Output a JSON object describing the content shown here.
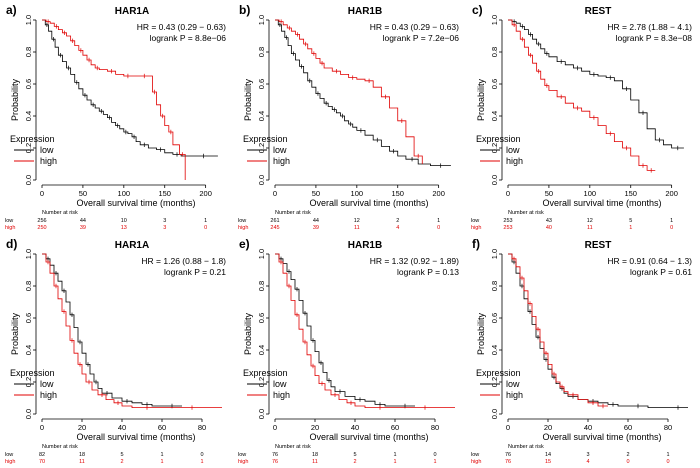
{
  "figure": {
    "colors": {
      "low": "#000000",
      "high": "#e00000",
      "axis": "#000000"
    },
    "legend_title": "Expression",
    "legend_labels": [
      "low",
      "high"
    ],
    "number_at_risk_label": "Number at risk"
  },
  "chart_data": [
    {
      "panel_label": "a)",
      "type": "line",
      "title": "HAR1A",
      "xlabel": "Overall survival time (months)",
      "ylabel": "Probability",
      "xlim": [
        0,
        220
      ],
      "ylim": [
        0,
        1
      ],
      "xticks": [
        0,
        50,
        100,
        150,
        200
      ],
      "yticks": [
        0,
        0.2,
        0.4,
        0.6,
        0.8,
        1.0
      ],
      "hr_text": "HR = 0.43 (0.29 − 0.63)",
      "p_text": "logrank P = 8.8e−06",
      "risk_times": [
        0,
        50,
        100,
        150,
        200
      ],
      "series": [
        {
          "name": "low",
          "risk": [
            "256",
            "44",
            "10",
            "3",
            "1"
          ],
          "x": [
            0,
            4,
            8,
            12,
            16,
            20,
            25,
            30,
            35,
            40,
            45,
            50,
            55,
            60,
            65,
            70,
            75,
            80,
            85,
            90,
            95,
            100,
            105,
            110,
            115,
            120,
            130,
            140,
            150,
            160,
            170,
            180,
            215
          ],
          "y": [
            1,
            0.97,
            0.93,
            0.88,
            0.83,
            0.78,
            0.74,
            0.7,
            0.66,
            0.61,
            0.57,
            0.53,
            0.5,
            0.47,
            0.45,
            0.43,
            0.41,
            0.39,
            0.36,
            0.34,
            0.32,
            0.3,
            0.29,
            0.27,
            0.24,
            0.22,
            0.2,
            0.19,
            0.17,
            0.16,
            0.15,
            0.15,
            0.15
          ]
        },
        {
          "name": "high",
          "risk": [
            "250",
            "39",
            "13",
            "3",
            "0"
          ],
          "x": [
            0,
            5,
            10,
            15,
            20,
            25,
            30,
            35,
            40,
            45,
            50,
            55,
            60,
            65,
            70,
            80,
            90,
            100,
            110,
            120,
            130,
            135,
            140,
            145,
            150,
            155,
            160,
            168,
            175
          ],
          "y": [
            1,
            0.99,
            0.98,
            0.96,
            0.94,
            0.92,
            0.9,
            0.87,
            0.84,
            0.81,
            0.78,
            0.75,
            0.72,
            0.7,
            0.69,
            0.68,
            0.66,
            0.65,
            0.65,
            0.65,
            0.65,
            0.55,
            0.47,
            0.4,
            0.34,
            0.3,
            0.22,
            0.16,
            0
          ]
        }
      ]
    },
    {
      "panel_label": "b)",
      "type": "line",
      "title": "HAR1B",
      "xlabel": "Overall survival time (months)",
      "ylabel": "Probability",
      "xlim": [
        0,
        220
      ],
      "ylim": [
        0,
        1
      ],
      "xticks": [
        0,
        50,
        100,
        150,
        200
      ],
      "yticks": [
        0,
        0.2,
        0.4,
        0.6,
        0.8,
        1.0
      ],
      "hr_text": "HR = 0.43 (0.29 − 0.63)",
      "p_text": "logrank P = 7.2e−06",
      "risk_times": [
        0,
        50,
        100,
        150,
        200
      ],
      "series": [
        {
          "name": "low",
          "risk": [
            "261",
            "44",
            "12",
            "2",
            "1"
          ],
          "x": [
            0,
            4,
            8,
            12,
            16,
            20,
            25,
            30,
            35,
            40,
            45,
            50,
            55,
            60,
            65,
            70,
            75,
            80,
            85,
            90,
            95,
            100,
            110,
            120,
            130,
            140,
            150,
            160,
            175,
            190,
            215
          ],
          "y": [
            1,
            0.97,
            0.93,
            0.89,
            0.84,
            0.79,
            0.75,
            0.71,
            0.67,
            0.62,
            0.58,
            0.54,
            0.51,
            0.48,
            0.46,
            0.44,
            0.42,
            0.4,
            0.37,
            0.35,
            0.33,
            0.31,
            0.28,
            0.25,
            0.21,
            0.18,
            0.15,
            0.13,
            0.1,
            0.09,
            0.09
          ]
        },
        {
          "name": "high",
          "risk": [
            "245",
            "39",
            "11",
            "4",
            "0"
          ],
          "x": [
            0,
            5,
            10,
            15,
            20,
            25,
            30,
            35,
            40,
            45,
            50,
            55,
            60,
            70,
            80,
            90,
            100,
            110,
            120,
            130,
            140,
            150,
            160,
            170,
            180
          ],
          "y": [
            1,
            0.99,
            0.97,
            0.95,
            0.93,
            0.91,
            0.88,
            0.85,
            0.82,
            0.79,
            0.76,
            0.73,
            0.7,
            0.68,
            0.66,
            0.64,
            0.63,
            0.62,
            0.58,
            0.52,
            0.45,
            0.37,
            0.27,
            0.15,
            0.1
          ]
        }
      ]
    },
    {
      "panel_label": "c)",
      "type": "line",
      "title": "REST",
      "xlabel": "Overall survival time (months)",
      "ylabel": "Probability",
      "xlim": [
        0,
        220
      ],
      "ylim": [
        0,
        1
      ],
      "xticks": [
        0,
        50,
        100,
        150,
        200
      ],
      "yticks": [
        0,
        0.2,
        0.4,
        0.6,
        0.8,
        1.0
      ],
      "hr_text": "HR = 2.78 (1.88 − 4.1)",
      "p_text": "logrank P = 8.3e−08",
      "risk_times": [
        0,
        50,
        100,
        150,
        200
      ],
      "series": [
        {
          "name": "low",
          "risk": [
            "253",
            "43",
            "12",
            "5",
            "1"
          ],
          "x": [
            0,
            5,
            10,
            15,
            20,
            25,
            30,
            35,
            40,
            45,
            50,
            60,
            70,
            80,
            90,
            100,
            110,
            120,
            130,
            140,
            150,
            160,
            170,
            180,
            190,
            200,
            215
          ],
          "y": [
            1,
            0.99,
            0.98,
            0.96,
            0.94,
            0.91,
            0.88,
            0.85,
            0.82,
            0.79,
            0.77,
            0.74,
            0.72,
            0.7,
            0.68,
            0.66,
            0.65,
            0.64,
            0.62,
            0.57,
            0.5,
            0.42,
            0.32,
            0.25,
            0.22,
            0.2,
            0.2
          ]
        },
        {
          "name": "high",
          "risk": [
            "253",
            "40",
            "11",
            "1",
            "0"
          ],
          "x": [
            0,
            5,
            10,
            15,
            20,
            25,
            30,
            35,
            40,
            45,
            50,
            60,
            70,
            80,
            90,
            100,
            110,
            120,
            130,
            140,
            150,
            160,
            170,
            180
          ],
          "y": [
            1,
            0.97,
            0.93,
            0.88,
            0.83,
            0.78,
            0.73,
            0.68,
            0.63,
            0.59,
            0.56,
            0.52,
            0.48,
            0.45,
            0.43,
            0.39,
            0.34,
            0.29,
            0.24,
            0.2,
            0.15,
            0.09,
            0.06,
            0.06
          ]
        }
      ]
    },
    {
      "panel_label": "d)",
      "type": "line",
      "title": "HAR1A",
      "xlabel": "Overall survival time (months)",
      "ylabel": "Probability",
      "xlim": [
        0,
        90
      ],
      "ylim": [
        0,
        1
      ],
      "xticks": [
        0,
        20,
        40,
        60,
        80
      ],
      "yticks": [
        0,
        0.2,
        0.4,
        0.6,
        0.8,
        1.0
      ],
      "hr_text": "HR = 1.26 (0.88 − 1.8)",
      "p_text": "logrank P = 0.21",
      "risk_times": [
        0,
        20,
        40,
        60,
        80
      ],
      "series": [
        {
          "name": "low",
          "risk": [
            "82",
            "18",
            "5",
            "1",
            "0"
          ],
          "x": [
            0,
            2,
            4,
            6,
            8,
            10,
            12,
            14,
            16,
            18,
            20,
            22,
            24,
            26,
            28,
            30,
            35,
            40,
            45,
            50,
            55,
            60,
            70
          ],
          "y": [
            1,
            0.97,
            0.93,
            0.88,
            0.83,
            0.77,
            0.7,
            0.62,
            0.54,
            0.45,
            0.38,
            0.31,
            0.25,
            0.2,
            0.16,
            0.13,
            0.1,
            0.08,
            0.07,
            0.06,
            0.05,
            0.05,
            0.05
          ]
        },
        {
          "name": "high",
          "risk": [
            "70",
            "11",
            "2",
            "1",
            "1"
          ],
          "x": [
            0,
            2,
            4,
            6,
            8,
            10,
            12,
            14,
            16,
            18,
            20,
            22,
            25,
            28,
            32,
            36,
            40,
            45,
            60,
            90
          ],
          "y": [
            1,
            0.95,
            0.88,
            0.8,
            0.72,
            0.64,
            0.55,
            0.46,
            0.38,
            0.31,
            0.25,
            0.2,
            0.15,
            0.12,
            0.09,
            0.07,
            0.05,
            0.04,
            0.04,
            0.04
          ]
        }
      ]
    },
    {
      "panel_label": "e)",
      "type": "line",
      "title": "HAR1B",
      "xlabel": "Overall survival time (months)",
      "ylabel": "Probability",
      "xlim": [
        0,
        90
      ],
      "ylim": [
        0,
        1
      ],
      "xticks": [
        0,
        20,
        40,
        60,
        80
      ],
      "yticks": [
        0,
        0.2,
        0.4,
        0.6,
        0.8,
        1.0
      ],
      "hr_text": "HR = 1.32 (0.92 − 1.89)",
      "p_text": "logrank P = 0.13",
      "risk_times": [
        0,
        20,
        40,
        60,
        80
      ],
      "series": [
        {
          "name": "low",
          "risk": [
            "76",
            "18",
            "5",
            "1",
            "0"
          ],
          "x": [
            0,
            2,
            4,
            6,
            8,
            10,
            12,
            14,
            16,
            18,
            20,
            22,
            24,
            26,
            28,
            30,
            35,
            40,
            45,
            50,
            55,
            60,
            70
          ],
          "y": [
            1,
            0.97,
            0.94,
            0.89,
            0.84,
            0.78,
            0.71,
            0.63,
            0.55,
            0.46,
            0.39,
            0.32,
            0.26,
            0.21,
            0.17,
            0.14,
            0.11,
            0.09,
            0.08,
            0.06,
            0.05,
            0.05,
            0.05
          ]
        },
        {
          "name": "high",
          "risk": [
            "76",
            "11",
            "2",
            "1",
            "1"
          ],
          "x": [
            0,
            2,
            4,
            6,
            8,
            10,
            12,
            14,
            16,
            18,
            20,
            22,
            25,
            28,
            32,
            36,
            40,
            45,
            60,
            90
          ],
          "y": [
            1,
            0.95,
            0.88,
            0.8,
            0.71,
            0.62,
            0.53,
            0.45,
            0.37,
            0.3,
            0.24,
            0.19,
            0.15,
            0.12,
            0.09,
            0.07,
            0.05,
            0.04,
            0.04,
            0.04
          ]
        }
      ]
    },
    {
      "panel_label": "f)",
      "type": "line",
      "title": "REST",
      "xlabel": "Overall survival time (months)",
      "ylabel": "Probability",
      "xlim": [
        0,
        90
      ],
      "ylim": [
        0,
        1
      ],
      "xticks": [
        0,
        20,
        40,
        60,
        80
      ],
      "yticks": [
        0,
        0.2,
        0.4,
        0.6,
        0.8,
        1.0
      ],
      "hr_text": "HR = 0.91 (0.64 − 1.3)",
      "p_text": "logrank P = 0.61",
      "risk_times": [
        0,
        20,
        40,
        60,
        80
      ],
      "series": [
        {
          "name": "low",
          "risk": [
            "76",
            "14",
            "3",
            "2",
            "1"
          ],
          "x": [
            0,
            2,
            4,
            6,
            8,
            10,
            12,
            14,
            16,
            18,
            20,
            22,
            24,
            26,
            28,
            30,
            35,
            40,
            45,
            50,
            55,
            60,
            70,
            80,
            90
          ],
          "y": [
            1,
            0.95,
            0.88,
            0.8,
            0.72,
            0.64,
            0.56,
            0.48,
            0.41,
            0.34,
            0.28,
            0.23,
            0.19,
            0.16,
            0.13,
            0.11,
            0.09,
            0.08,
            0.07,
            0.06,
            0.05,
            0.05,
            0.04,
            0.04,
            0.04
          ]
        },
        {
          "name": "high",
          "risk": [
            "76",
            "15",
            "4",
            "0",
            "0"
          ],
          "x": [
            0,
            2,
            4,
            6,
            8,
            10,
            12,
            14,
            16,
            18,
            20,
            22,
            24,
            26,
            28,
            30,
            35,
            40,
            45,
            50
          ],
          "y": [
            1,
            0.97,
            0.92,
            0.85,
            0.77,
            0.69,
            0.61,
            0.53,
            0.45,
            0.38,
            0.31,
            0.25,
            0.2,
            0.17,
            0.14,
            0.12,
            0.09,
            0.07,
            0.05,
            0.05
          ]
        }
      ]
    }
  ]
}
